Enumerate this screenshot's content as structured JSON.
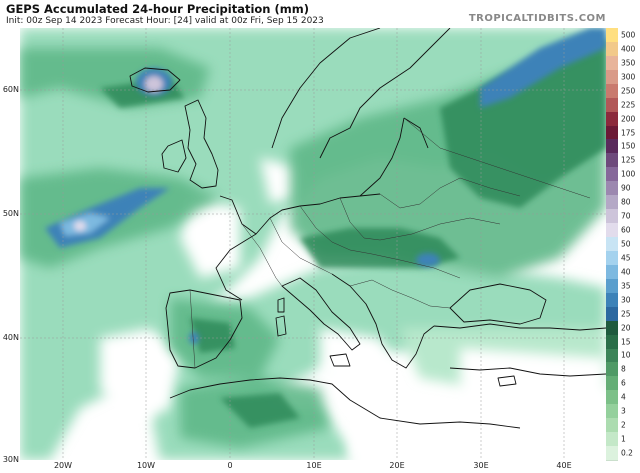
{
  "header": {
    "title": "GEPS Accumulated 24-hour Precipitation (mm)",
    "subtitle": "Init: 00z Sep 14 2023   Forecast Hour: [24]   valid at 00z Fri, Sep 15 2023",
    "brand": "TROPICALTIDBITS.COM"
  },
  "axes": {
    "latitude_labels": [
      "60N",
      "50N",
      "40N",
      "30N"
    ],
    "longitude_labels": [
      "20W",
      "10W",
      "0",
      "10E",
      "20E",
      "30E",
      "40E"
    ]
  },
  "colorbar": {
    "levels": [
      "500",
      "400",
      "350",
      "300",
      "250",
      "225",
      "200",
      "175",
      "150",
      "125",
      "100",
      "90",
      "80",
      "70",
      "60",
      "50",
      "45",
      "40",
      "35",
      "30",
      "25",
      "20",
      "15",
      "10",
      "8",
      "6",
      "4",
      "3",
      "2",
      "1",
      "0.2"
    ],
    "colors": [
      "#ffdf80",
      "#f2c98a",
      "#e8b49a",
      "#d99a88",
      "#c97a6e",
      "#b25858",
      "#8c2a3c",
      "#6b1a36",
      "#5a2a5c",
      "#6e4a7c",
      "#86689a",
      "#9c88b0",
      "#b4a8c6",
      "#cdc4da",
      "#e2dcec",
      "#c8e4f4",
      "#a4d2ee",
      "#7db9e0",
      "#5a9ecd",
      "#3d82b8",
      "#2c68a0",
      "#1f5a3e",
      "#2a6e48",
      "#3c8458",
      "#4f9a66",
      "#64ae76",
      "#7cc088",
      "#94d09c",
      "#acdcb0",
      "#c4e8c8",
      "#dcf2de"
    ]
  },
  "map": {
    "legend": "none",
    "grid": "on",
    "field": "24-hour accumulated precipitation (mm)"
  }
}
